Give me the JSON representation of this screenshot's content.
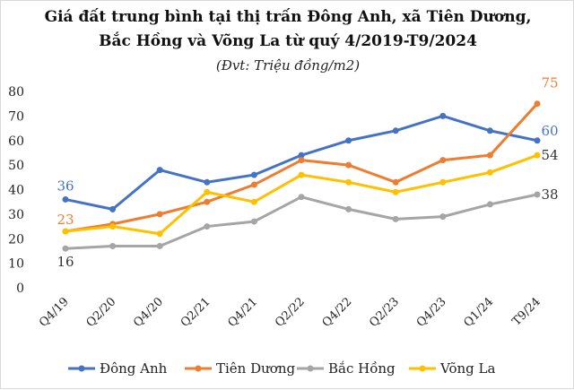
{
  "chart_data": {
    "type": "line",
    "title_line1": "Giá đất trung bình tại thị trấn Đông Anh, xã Tiên Dương,",
    "title_line2": "Bắc Hồng và Võng La từ quý 4/2019-T9/2024",
    "subtitle": "(Đvt: Triệu đồng/m2)",
    "categories": [
      "Q4/19",
      "Q2/20",
      "Q4/20",
      "Q2/21",
      "Q4/21",
      "Q2/22",
      "Q4/22",
      "Q2/23",
      "Q4/23",
      "Q1/24",
      "T9/24"
    ],
    "ylim": [
      0,
      80
    ],
    "yticks": [
      0,
      10,
      20,
      30,
      40,
      50,
      60,
      70,
      80
    ],
    "grid": false,
    "legend_position": "bottom",
    "series": [
      {
        "name": "Đông Anh",
        "color": "#4472C4",
        "values": [
          36,
          32,
          48,
          43,
          46,
          54,
          60,
          64,
          70,
          64,
          60
        ],
        "labeled": [
          0,
          10
        ]
      },
      {
        "name": "Tiên Dương",
        "color": "#ED7D31",
        "values": [
          23,
          26,
          30,
          35,
          42,
          52,
          50,
          43,
          52,
          54,
          75
        ],
        "labeled": [
          0,
          10
        ]
      },
      {
        "name": "Bắc Hồng",
        "color": "#A5A5A5",
        "values": [
          16,
          17,
          17,
          25,
          27,
          37,
          32,
          28,
          29,
          34,
          38
        ],
        "labeled": [
          0,
          10
        ]
      },
      {
        "name": "Võng La",
        "color": "#FFC000",
        "values": [
          23,
          25,
          22,
          39,
          35,
          46,
          43,
          39,
          43,
          47,
          54
        ],
        "labeled": [
          10
        ]
      }
    ]
  }
}
